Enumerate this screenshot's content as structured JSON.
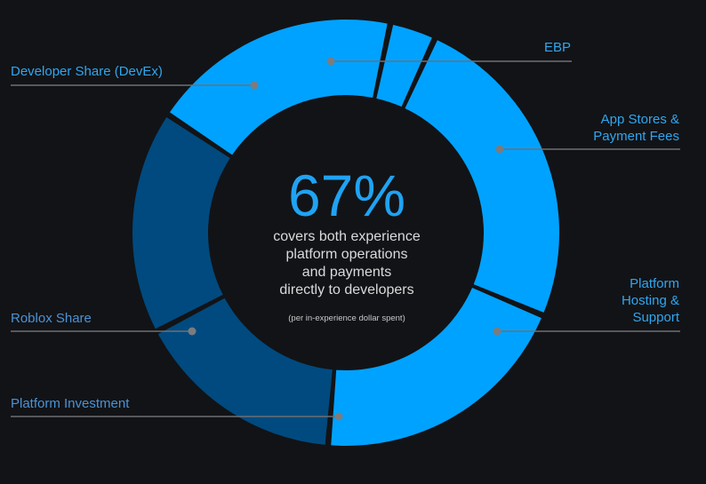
{
  "chart_data": {
    "type": "donut",
    "segments": [
      {
        "label": "EBP",
        "value": 3.5,
        "color": "#00a2ff"
      },
      {
        "label": "App Stores & Payment Fees",
        "value": 24.5,
        "color": "#00a2ff"
      },
      {
        "label": "Platform Hosting & Support",
        "value": 20,
        "color": "#00a2ff"
      },
      {
        "label": "Platform Investment",
        "value": 16,
        "color": "#004a7f"
      },
      {
        "label": "Roblox Share",
        "value": 17,
        "color": "#004a7f"
      },
      {
        "label": "Developer Share (DevEx)",
        "value": 19,
        "color": "#00a2ff"
      }
    ],
    "center": {
      "value": "67%",
      "line1": "covers both experience",
      "line2": "platform operations",
      "line3": "and payments",
      "line4": "directly to developers",
      "note": "(per in-experience dollar spent)"
    }
  },
  "labels": {
    "ebp": "EBP",
    "app_stores_1": "App Stores &",
    "app_stores_2": "Payment Fees",
    "hosting_1": "Platform",
    "hosting_2": "Hosting &",
    "hosting_3": "Support",
    "investment": "Platform Investment",
    "roblox_share": "Roblox Share",
    "devex": "Developer Share (DevEx)"
  },
  "colors": {
    "background": "#121316",
    "light_segment": "#00a2ff",
    "dark_segment": "#004a7f",
    "leader_line": "#6e7075"
  }
}
